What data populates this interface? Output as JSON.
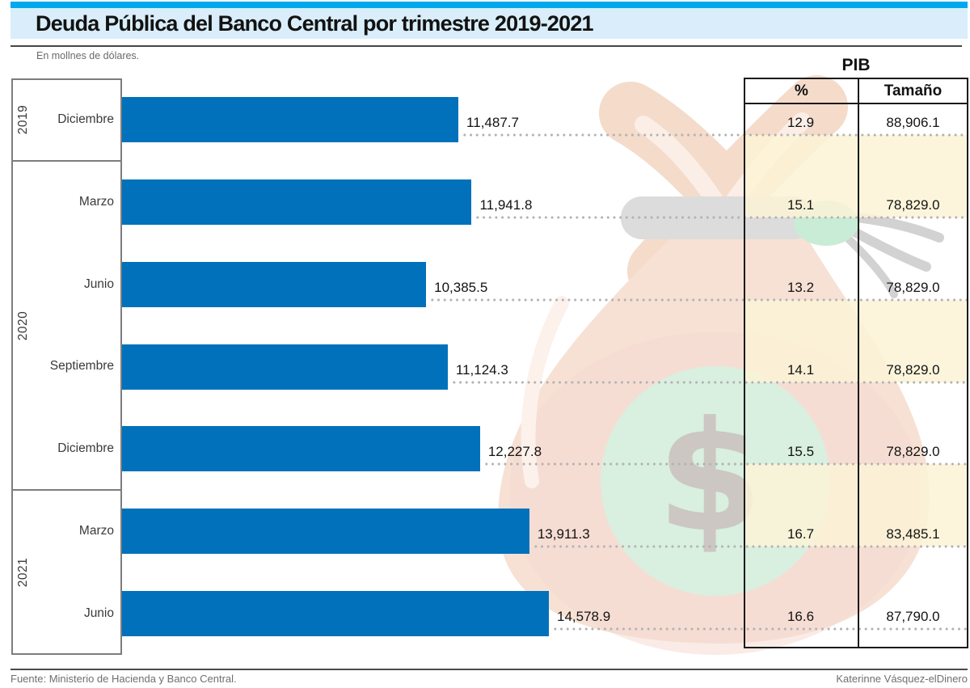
{
  "title": "Deuda Pública del Banco Central por trimestre 2019-2021",
  "subtitle": "En mollnes de dólares.",
  "pib_table": {
    "title": "PIB",
    "columns": [
      "%",
      "Tamaño"
    ]
  },
  "footer": {
    "source": "Fuente: Ministerio de Hacienda y Banco Central.",
    "credit": "Katerinne Vásquez-elDinero"
  },
  "colors": {
    "accent_top_bar": "#00a9ee",
    "title_band_bg": "#d9eefa",
    "bar": "#0071ba",
    "cream_row": "#fbf3d6",
    "cream_row_alpha": 0.85,
    "dot": "#b3b3b3",
    "table_border": "#1a1a1a",
    "box_border": "#7d7d7d"
  },
  "chart_data": {
    "type": "bar",
    "orientation": "horizontal",
    "title": "Deuda Pública del Banco Central por trimestre 2019-2021",
    "unit_note": "En mollnes de dólares.",
    "value_axis_max": 14578.9,
    "gridlines": "dotted leader lines from each bar end to right edge",
    "year_groups": [
      {
        "label": "2019",
        "rows": 1
      },
      {
        "label": "2020",
        "rows": 4
      },
      {
        "label": "2021",
        "rows": 2
      }
    ],
    "rows": [
      {
        "year": "2019",
        "month": "Diciembre",
        "value": 11487.7,
        "value_label": "11,487.7",
        "pib_pct": "12.9",
        "pib_size": "88,906.1",
        "shaded": false
      },
      {
        "year": "2020",
        "month": "Marzo",
        "value": 11941.8,
        "value_label": "11,941.8",
        "pib_pct": "15.1",
        "pib_size": "78,829.0",
        "shaded": true
      },
      {
        "year": "2020",
        "month": "Junio",
        "value": 10385.5,
        "value_label": "10,385.5",
        "pib_pct": "13.2",
        "pib_size": "78,829.0",
        "shaded": false
      },
      {
        "year": "2020",
        "month": "Septiembre",
        "value": 11124.3,
        "value_label": "11,124.3",
        "pib_pct": "14.1",
        "pib_size": "78,829.0",
        "shaded": true
      },
      {
        "year": "2020",
        "month": "Diciembre",
        "value": 12227.8,
        "value_label": "12,227.8",
        "pib_pct": "15.5",
        "pib_size": "78,829.0",
        "shaded": false
      },
      {
        "year": "2021",
        "month": "Marzo",
        "value": 13911.3,
        "value_label": "13,911.3",
        "pib_pct": "16.7",
        "pib_size": "83,485.1",
        "shaded": true
      },
      {
        "year": "2021",
        "month": "Junio",
        "value": 14578.9,
        "value_label": "14,578.9",
        "pib_pct": "16.6",
        "pib_size": "87,790.0",
        "shaded": false
      }
    ]
  }
}
